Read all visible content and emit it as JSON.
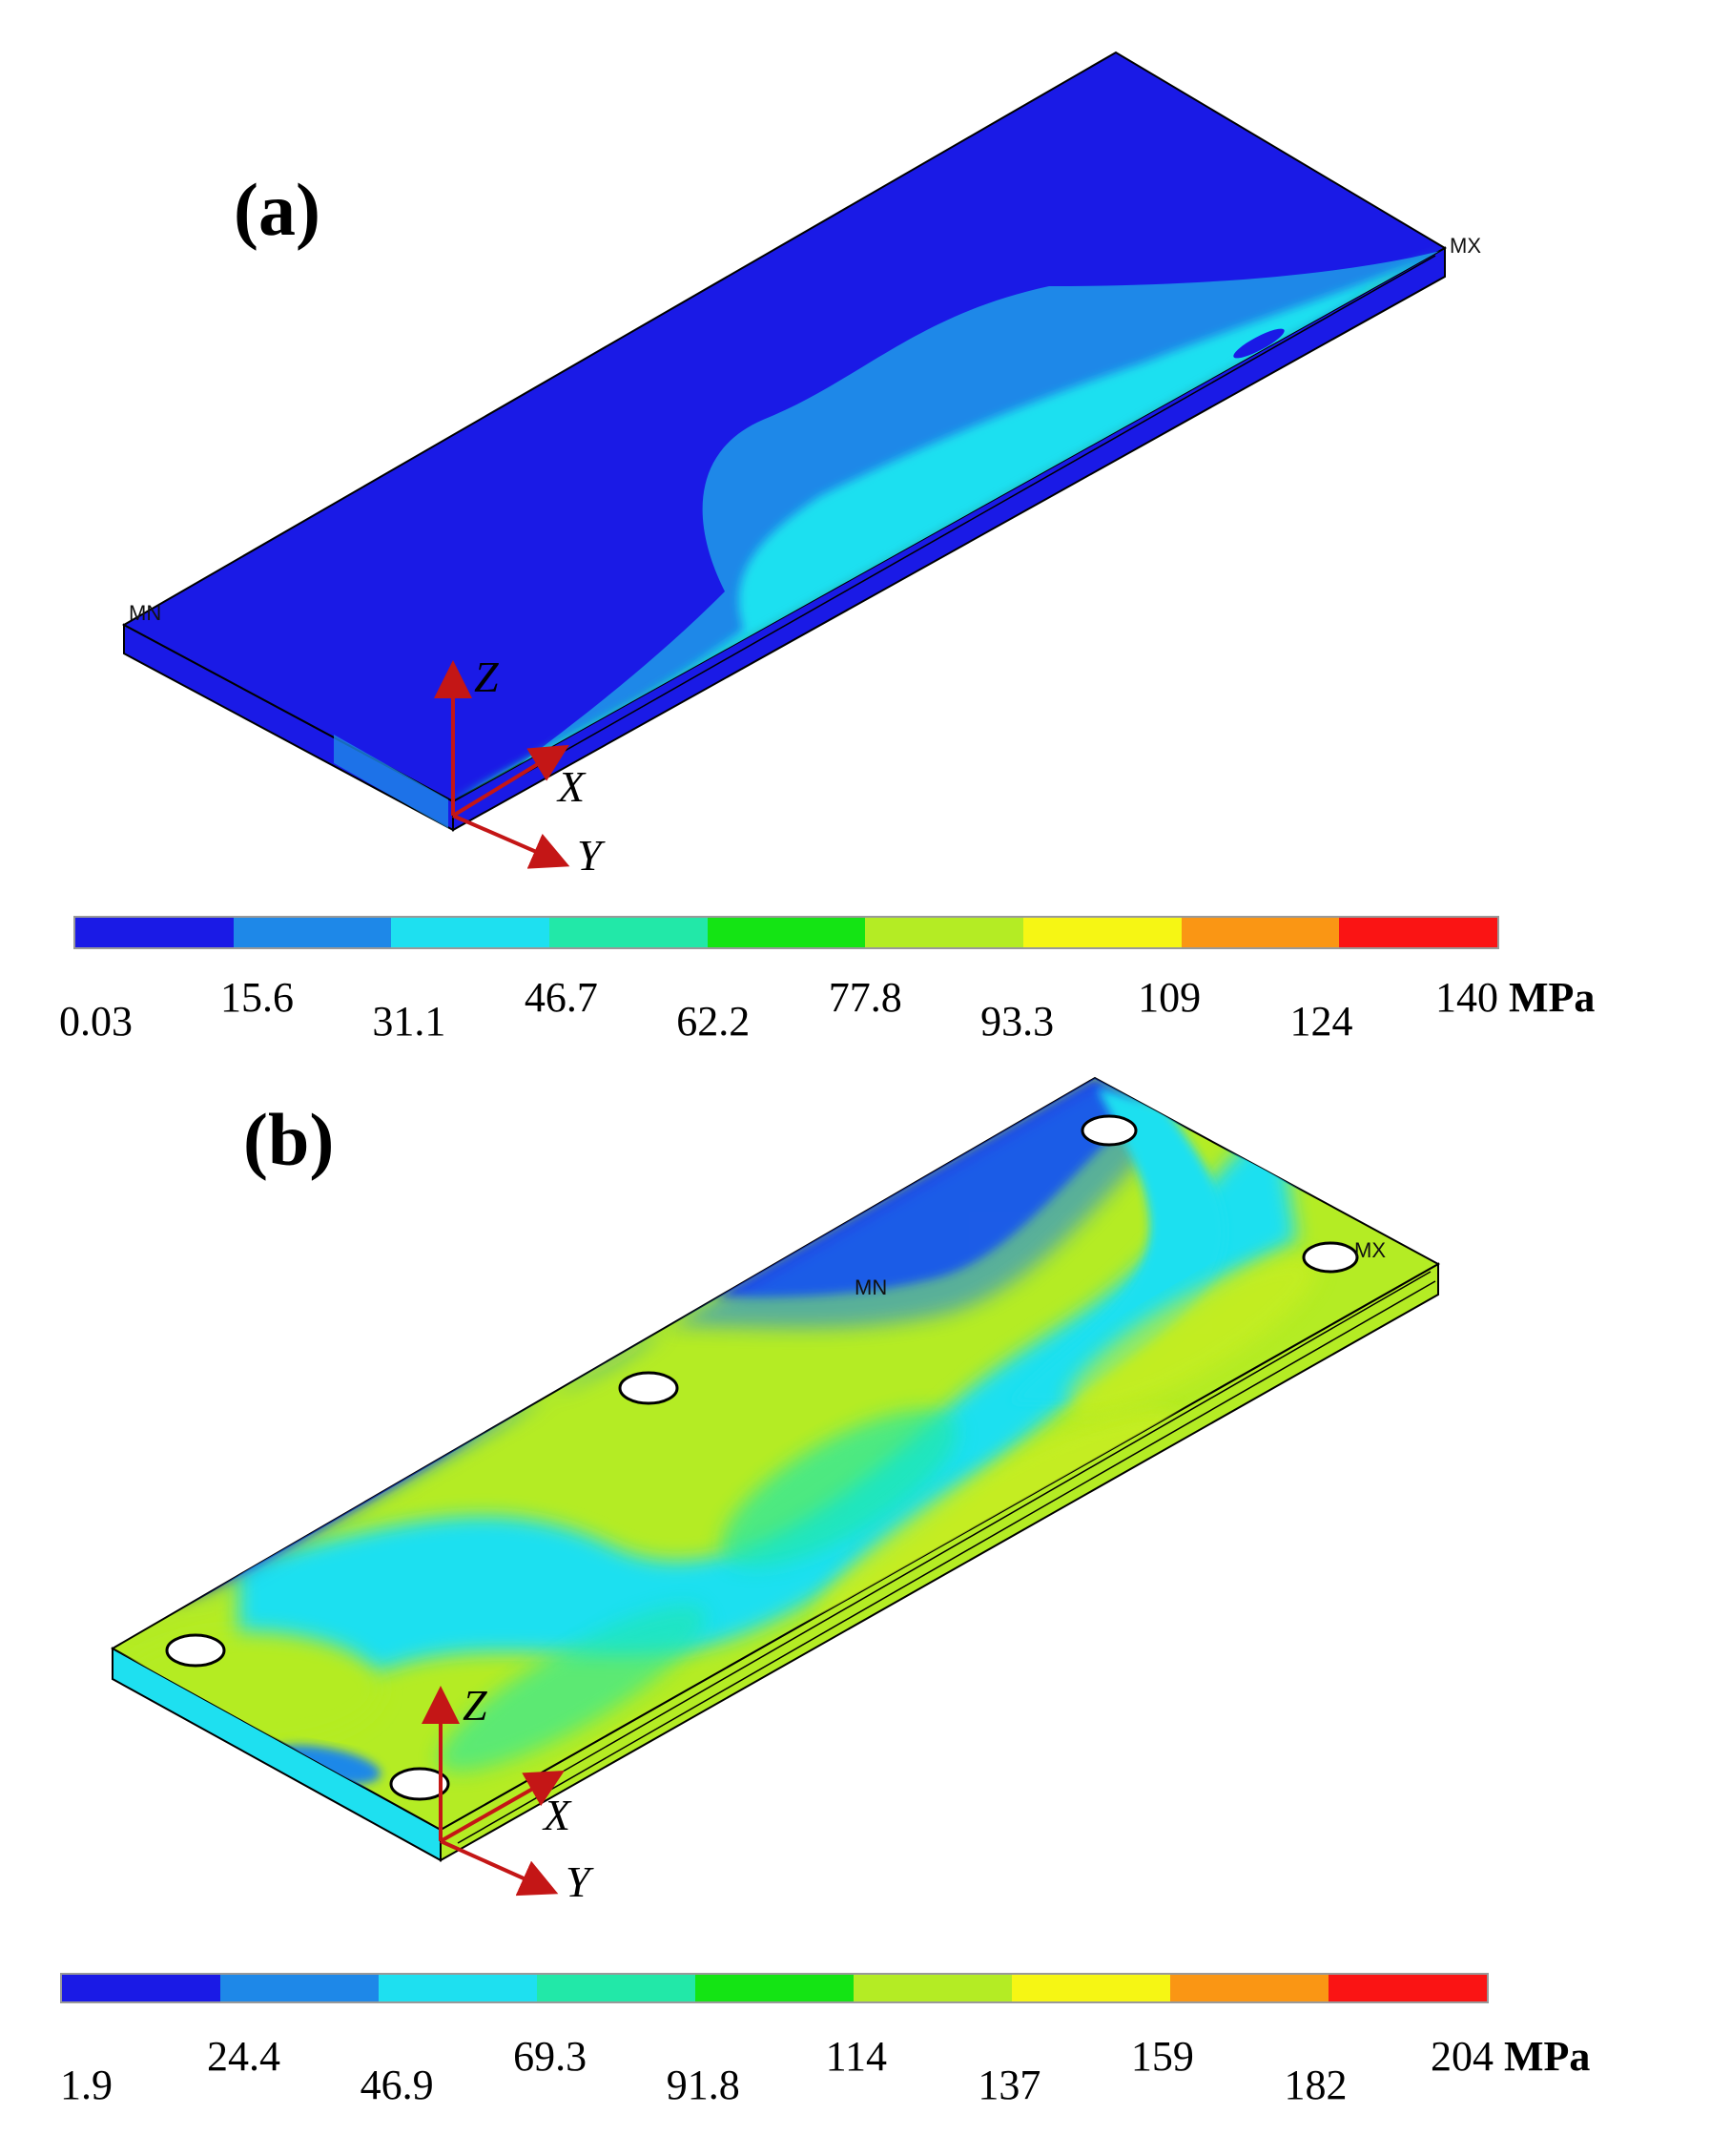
{
  "panels": [
    {
      "id": "a",
      "label": "(a)",
      "colorbar": {
        "colors": [
          "#1a1ae6",
          "#1e88e8",
          "#1ee0f0",
          "#22e8a8",
          "#14e414",
          "#b4ec24",
          "#f6f614",
          "#fa9614",
          "#fa1414"
        ],
        "ticks": [
          "0.03",
          "15.6",
          "31.1",
          "46.7",
          "62.2",
          "77.8",
          "93.3",
          "109",
          "124",
          "140"
        ],
        "unit": "MPa"
      },
      "axes": {
        "z": "Z",
        "x": "X",
        "y": "Y"
      },
      "markers": {
        "mn": "MN",
        "mx": "MX"
      }
    },
    {
      "id": "b",
      "label": "(b)",
      "colorbar": {
        "colors": [
          "#1a1ae6",
          "#1e88e8",
          "#1ee0f0",
          "#22e8a8",
          "#14e414",
          "#b4ec24",
          "#f6f614",
          "#fa9614",
          "#fa1414"
        ],
        "ticks": [
          "1.9",
          "24.4",
          "46.9",
          "69.3",
          "91.8",
          "114",
          "137",
          "159",
          "182",
          "204"
        ],
        "unit": "MPa"
      },
      "axes": {
        "z": "Z",
        "x": "X",
        "y": "Y"
      },
      "markers": {
        "mn": "MN",
        "mx": "MX"
      }
    }
  ]
}
